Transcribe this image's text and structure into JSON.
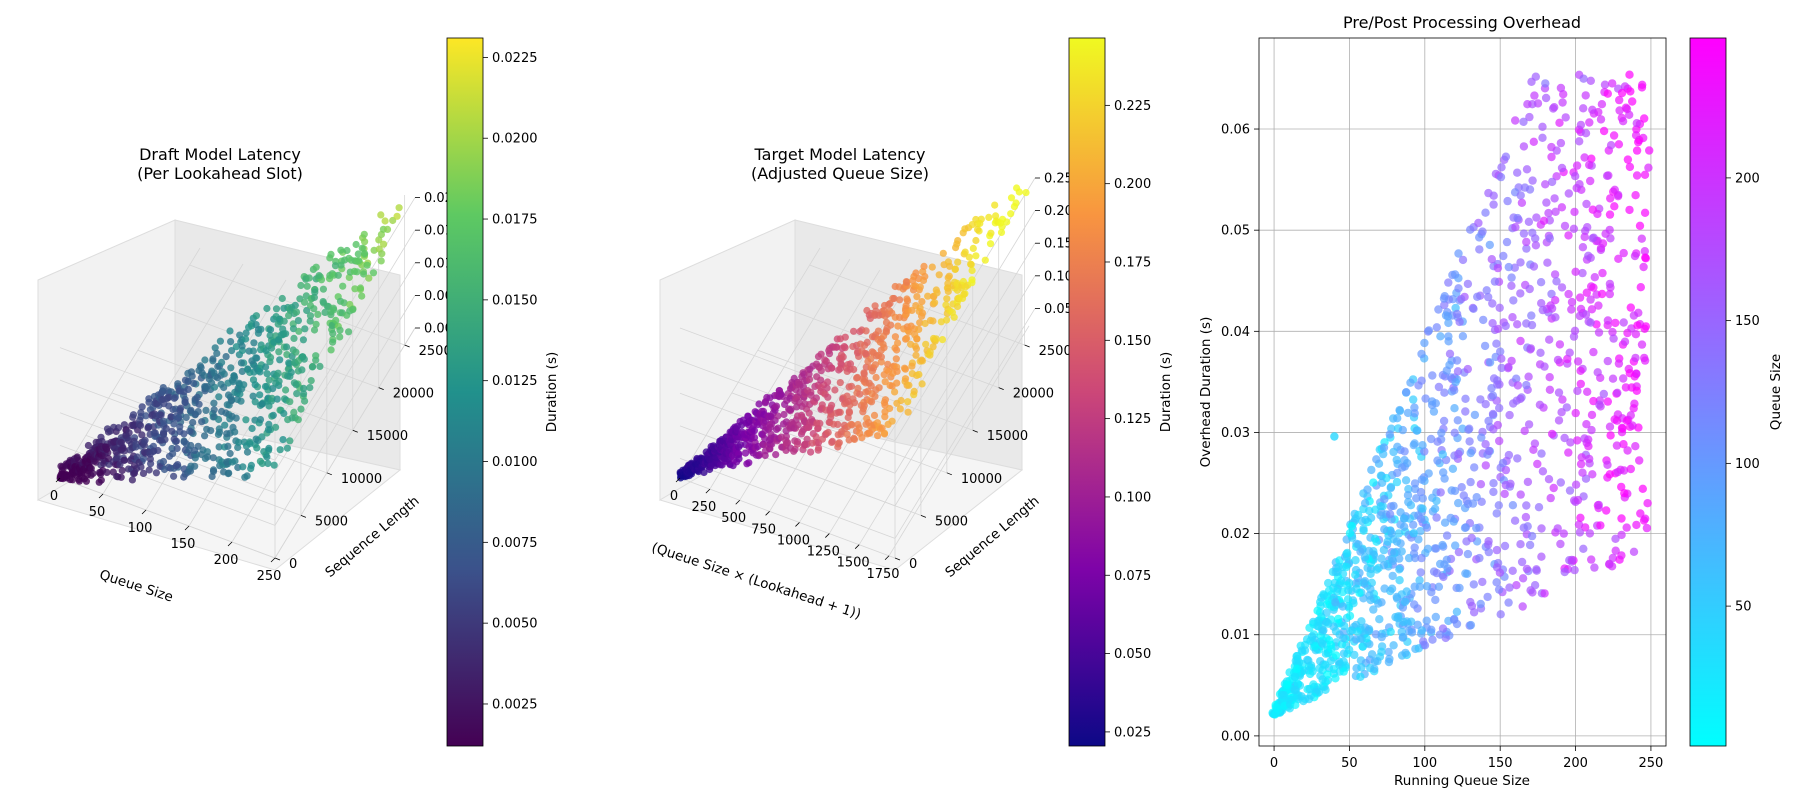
{
  "chart_data": [
    {
      "type": "scatter",
      "projection": "3d",
      "title": "Draft Model Latency\n(Per Lookahead Slot)",
      "xlabel": "Queue Size",
      "ylabel": "Sequence Length",
      "zlabel": "",
      "xticks": [
        "0",
        "50",
        "100",
        "150",
        "200",
        "250"
      ],
      "yticks": [
        "0",
        "5000",
        "10000",
        "15000",
        "20000",
        "25000"
      ],
      "zticks": [
        "0.000",
        "0.005",
        "0.010",
        "0.015",
        "0.020"
      ],
      "xlim": [
        0,
        250
      ],
      "ylim": [
        0,
        27000
      ],
      "zlim": [
        0,
        0.023
      ],
      "colorbar": {
        "label": "Duration (s)",
        "cmap": "viridis",
        "ticks": [
          "0.0025",
          "0.0050",
          "0.0075",
          "0.0100",
          "0.0125",
          "0.0150",
          "0.0175",
          "0.0200",
          "0.0225"
        ],
        "range": [
          0.0012,
          0.0231
        ]
      },
      "grid": true
    },
    {
      "type": "scatter",
      "projection": "3d",
      "title": "Target Model Latency\n(Adjusted Queue Size)",
      "xlabel": "(Queue Size × (Lookahead + 1))",
      "ylabel": "Sequence Length",
      "zlabel": "",
      "xticks": [
        "0",
        "250",
        "500",
        "750",
        "1000",
        "1250",
        "1500",
        "1750"
      ],
      "yticks": [
        "0",
        "5000",
        "10000",
        "15000",
        "20000",
        "25000"
      ],
      "zticks": [
        "0.05",
        "0.10",
        "0.15",
        "0.20",
        "0.25"
      ],
      "xlim": [
        0,
        1800
      ],
      "ylim": [
        0,
        27000
      ],
      "zlim": [
        0.02,
        0.25
      ],
      "colorbar": {
        "label": "Duration (s)",
        "cmap": "plasma",
        "ticks": [
          "0.025",
          "0.050",
          "0.075",
          "0.100",
          "0.125",
          "0.150",
          "0.175",
          "0.200",
          "0.225"
        ],
        "range": [
          0.0205,
          0.2465
        ]
      },
      "grid": true
    },
    {
      "type": "scatter",
      "title": "Pre/Post Processing Overhead",
      "xlabel": "Running Queue Size",
      "ylabel": "Overhead Duration (s)",
      "xticks": [
        "0",
        "50",
        "100",
        "150",
        "200",
        "250"
      ],
      "yticks": [
        "0.00",
        "0.01",
        "0.02",
        "0.03",
        "0.04",
        "0.05",
        "0.06"
      ],
      "xlim": [
        -10,
        260
      ],
      "ylim": [
        -0.001,
        0.069
      ],
      "outlier": [
        40,
        0.0296
      ],
      "colorbar": {
        "label": "Queue Size",
        "cmap": "cool",
        "ticks": [
          "50",
          "100",
          "150",
          "200"
        ],
        "range": [
          1,
          249
        ]
      },
      "grid": true
    }
  ]
}
